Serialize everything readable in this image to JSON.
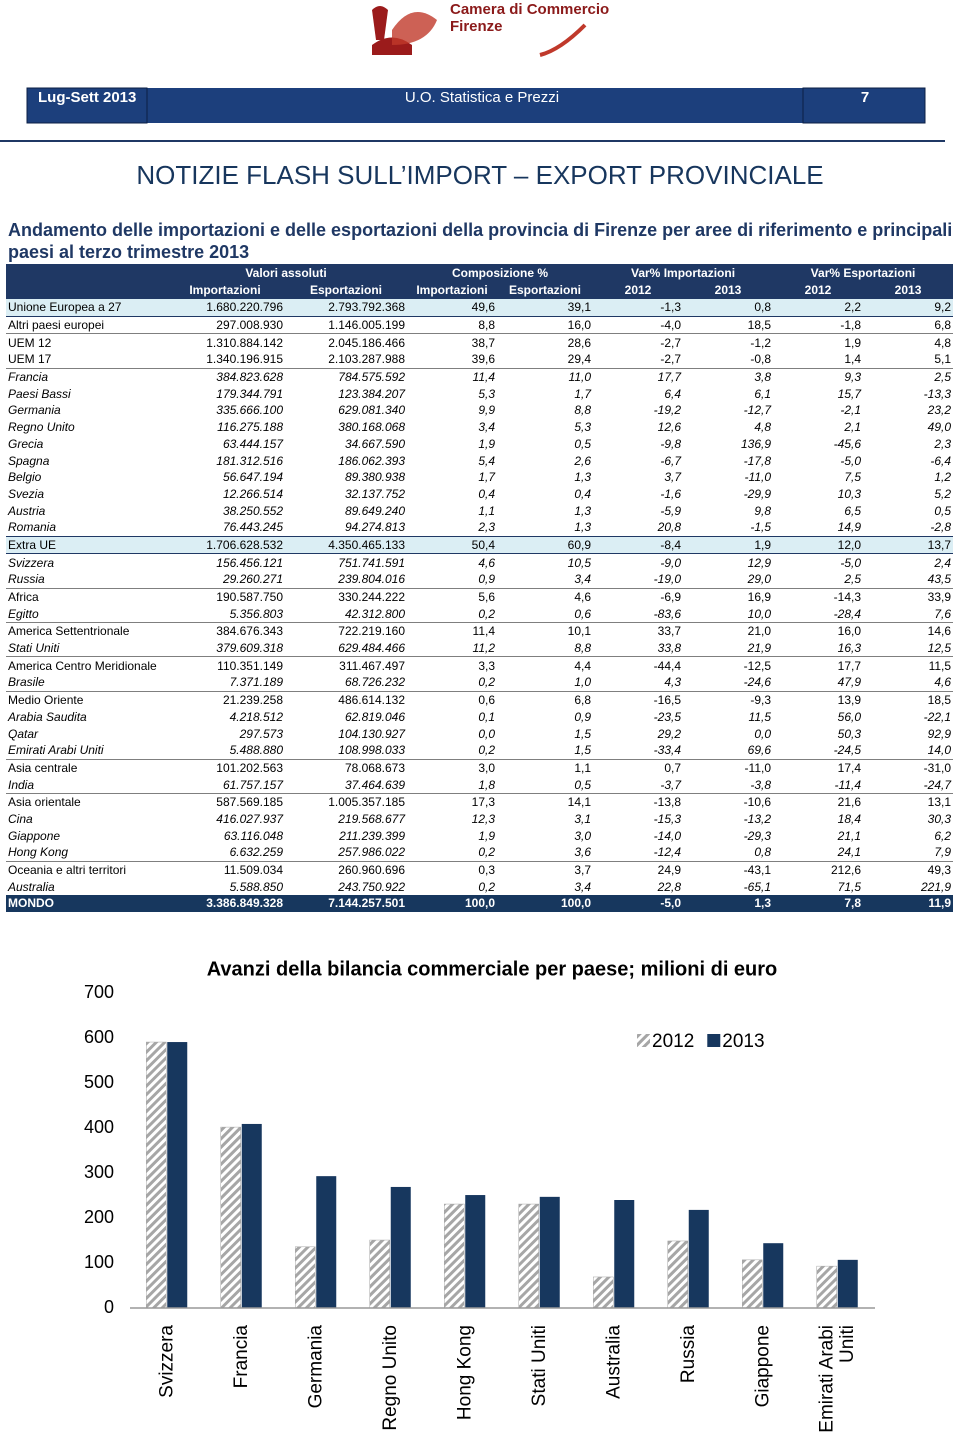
{
  "header": {
    "logo_lines": [
      "Camera di Commercio",
      "Firenze"
    ],
    "period": "Lug-Sett 2013",
    "unit": "U.O. Statistica e Prezzi",
    "page": "7"
  },
  "title": "NOTIZIE FLASH SULL’IMPORT – EXPORT PROVINCIALE",
  "subtitle": "Andamento delle importazioni e delle esportazioni della provincia di Firenze per aree di riferimento e principali paesi al terzo trimestre 2013",
  "table": {
    "group_headers": [
      "Valori assoluti",
      "Composizione %",
      "Var% Importazioni",
      "Var% Esportazioni"
    ],
    "column_headers": [
      "Importazioni",
      "Esportazioni",
      "Importazioni",
      "Esportazioni",
      "2012",
      "2013",
      "2012",
      "2013"
    ],
    "rows": [
      [
        "Unione Europea a 27",
        "1.680.220.796",
        "2.793.792.368",
        "49,6",
        "39,1",
        "-1,3",
        "0,8",
        "2,2",
        "9,2"
      ],
      [
        "Altri paesi europei",
        "297.008.930",
        "1.146.005.199",
        "8,8",
        "16,0",
        "-4,0",
        "18,5",
        "-1,8",
        "6,8"
      ],
      [
        "UEM 12",
        "1.310.884.142",
        "2.045.186.466",
        "38,7",
        "28,6",
        "-2,7",
        "-1,2",
        "1,9",
        "4,8"
      ],
      [
        "UEM 17",
        "1.340.196.915",
        "2.103.287.988",
        "39,6",
        "29,4",
        "-2,7",
        "-0,8",
        "1,4",
        "5,1"
      ],
      [
        "Francia",
        "384.823.628",
        "784.575.592",
        "11,4",
        "11,0",
        "17,7",
        "3,8",
        "9,3",
        "2,5"
      ],
      [
        "Paesi Bassi",
        "179.344.791",
        "123.384.207",
        "5,3",
        "1,7",
        "6,4",
        "6,1",
        "15,7",
        "-13,3"
      ],
      [
        "Germania",
        "335.666.100",
        "629.081.340",
        "9,9",
        "8,8",
        "-19,2",
        "-12,7",
        "-2,1",
        "23,2"
      ],
      [
        "Regno Unito",
        "116.275.188",
        "380.168.068",
        "3,4",
        "5,3",
        "12,6",
        "4,8",
        "2,1",
        "49,0"
      ],
      [
        "Grecia",
        "63.444.157",
        "34.667.590",
        "1,9",
        "0,5",
        "-9,8",
        "136,9",
        "-45,6",
        "2,3"
      ],
      [
        "Spagna",
        "181.312.516",
        "186.062.393",
        "5,4",
        "2,6",
        "-6,7",
        "-17,8",
        "-5,0",
        "-6,4"
      ],
      [
        "Belgio",
        "56.647.194",
        "89.380.938",
        "1,7",
        "1,3",
        "3,7",
        "-11,0",
        "7,5",
        "1,2"
      ],
      [
        "Svezia",
        "12.266.514",
        "32.137.752",
        "0,4",
        "0,4",
        "-1,6",
        "-29,9",
        "10,3",
        "5,2"
      ],
      [
        "Austria",
        "38.250.552",
        "89.649.240",
        "1,1",
        "1,3",
        "-5,9",
        "9,8",
        "6,5",
        "0,5"
      ],
      [
        "Romania",
        "76.443.245",
        "94.274.813",
        "2,3",
        "1,3",
        "20,8",
        "-1,5",
        "14,9",
        "-2,8"
      ],
      [
        "Extra UE",
        "1.706.628.532",
        "4.350.465.133",
        "50,4",
        "60,9",
        "-8,4",
        "1,9",
        "12,0",
        "13,7"
      ],
      [
        "Svizzera",
        "156.456.121",
        "751.741.591",
        "4,6",
        "10,5",
        "-9,0",
        "12,9",
        "-5,0",
        "2,4"
      ],
      [
        "Russia",
        "29.260.271",
        "239.804.016",
        "0,9",
        "3,4",
        "-19,0",
        "29,0",
        "2,5",
        "43,5"
      ],
      [
        "Africa",
        "190.587.750",
        "330.244.222",
        "5,6",
        "4,6",
        "-6,9",
        "16,9",
        "-14,3",
        "33,9"
      ],
      [
        "Egitto",
        "5.356.803",
        "42.312.800",
        "0,2",
        "0,6",
        "-83,6",
        "10,0",
        "-28,4",
        "7,6"
      ],
      [
        "America Settentrionale",
        "384.676.343",
        "722.219.160",
        "11,4",
        "10,1",
        "33,7",
        "21,0",
        "16,0",
        "14,6"
      ],
      [
        "Stati Uniti",
        "379.609.318",
        "629.484.466",
        "11,2",
        "8,8",
        "33,8",
        "21,9",
        "16,3",
        "12,5"
      ],
      [
        "America Centro Meridionale",
        "110.351.149",
        "311.467.497",
        "3,3",
        "4,4",
        "-44,4",
        "-12,5",
        "17,7",
        "11,5"
      ],
      [
        "Brasile",
        "7.371.189",
        "68.726.232",
        "0,2",
        "1,0",
        "4,3",
        "-24,6",
        "47,9",
        "4,6"
      ],
      [
        "Medio Oriente",
        "21.239.258",
        "486.614.132",
        "0,6",
        "6,8",
        "-16,5",
        "-9,3",
        "13,9",
        "18,5"
      ],
      [
        "Arabia Saudita",
        "4.218.512",
        "62.819.046",
        "0,1",
        "0,9",
        "-23,5",
        "11,5",
        "56,0",
        "-22,1"
      ],
      [
        "Qatar",
        "297.573",
        "104.130.927",
        "0,0",
        "1,5",
        "29,2",
        "0,0",
        "50,3",
        "92,9"
      ],
      [
        "Emirati Arabi Uniti",
        "5.488.880",
        "108.998.033",
        "0,2",
        "1,5",
        "-33,4",
        "69,6",
        "-24,5",
        "14,0"
      ],
      [
        "Asia centrale",
        "101.202.563",
        "78.068.673",
        "3,0",
        "1,1",
        "0,7",
        "-11,0",
        "17,4",
        "-31,0"
      ],
      [
        "India",
        "61.757.157",
        "37.464.639",
        "1,8",
        "0,5",
        "-3,7",
        "-3,8",
        "-11,4",
        "-24,7"
      ],
      [
        "Asia orientale",
        "587.569.185",
        "1.005.357.185",
        "17,3",
        "14,1",
        "-13,8",
        "-10,6",
        "21,6",
        "13,1"
      ],
      [
        "Cina",
        "416.027.937",
        "219.568.677",
        "12,3",
        "3,1",
        "-15,3",
        "-13,2",
        "18,4",
        "30,3"
      ],
      [
        "Giappone",
        "63.116.048",
        "211.239.399",
        "1,9",
        "3,0",
        "-14,0",
        "-29,3",
        "21,1",
        "6,2"
      ],
      [
        "Hong Kong",
        "6.632.259",
        "257.986.022",
        "0,2",
        "3,6",
        "-12,4",
        "0,8",
        "24,1",
        "7,9"
      ],
      [
        "Oceania e altri territori",
        "11.509.034",
        "260.960.696",
        "0,3",
        "3,7",
        "24,9",
        "-43,1",
        "212,6",
        "49,3"
      ],
      [
        "Australia",
        "5.588.850",
        "243.750.922",
        "0,2",
        "3,4",
        "22,8",
        "-65,1",
        "71,5",
        "221,9"
      ],
      [
        "MONDO",
        "3.386.849.328",
        "7.144.257.501",
        "100,0",
        "100,0",
        "-5,0",
        "1,3",
        "7,8",
        "11,9"
      ]
    ]
  },
  "chart_data": {
    "type": "bar",
    "title": "Avanzi della bilancia commerciale per paese; milioni di euro",
    "categories": [
      "Svizzera",
      "Francia",
      "Germania",
      "Regno Unito",
      "Hong Kong",
      "Stati Uniti",
      "Australia",
      "Russia",
      "Giappone",
      "Emirati Arabi Uniti"
    ],
    "series": [
      {
        "name": "2012",
        "color": "#a6a6a6",
        "hatch": true,
        "values": [
          591,
          402,
          136,
          151,
          231,
          231,
          69,
          149,
          107,
          93
        ]
      },
      {
        "name": "2013",
        "color": "#17375e",
        "values": [
          591,
          409,
          293,
          269,
          251,
          247,
          240,
          218,
          144,
          107
        ]
      }
    ],
    "ylim": [
      0,
      700
    ],
    "yticks": [
      0,
      100,
      200,
      300,
      400,
      500,
      600,
      700
    ],
    "grid": false,
    "legend": "top-right"
  }
}
